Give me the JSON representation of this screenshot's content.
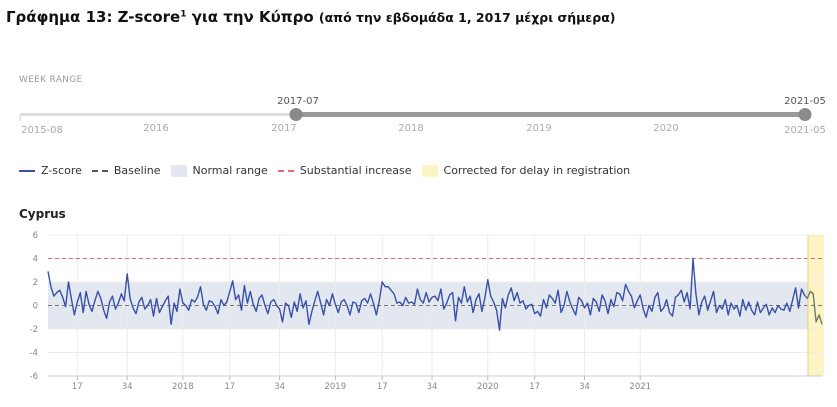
{
  "heading": {
    "main": "Γράφημα 13: Z-score",
    "sup": "1",
    "middle": " για την Κύπρο ",
    "sub": "(από την εβδομάδα 1, 2017 μέχρι σήμερα)"
  },
  "range_selector": {
    "label": "WEEK RANGE",
    "start_value": "2017-07",
    "end_value": "2021-05",
    "axis_start": "2015-08",
    "axis_end": "2021-05",
    "years": [
      "2016",
      "2017",
      "2018",
      "2019",
      "2020"
    ]
  },
  "legend": {
    "items": [
      {
        "label": "Z-score",
        "swatch": "line",
        "color": "#3850a8"
      },
      {
        "label": "Baseline",
        "swatch": "dash",
        "color": "#555555"
      },
      {
        "label": "Normal range",
        "swatch": "band",
        "color": "#e3e7ef"
      },
      {
        "label": "Substantial increase",
        "swatch": "reddash",
        "color": "#e07070"
      },
      {
        "label": "Corrected for delay in registration",
        "swatch": "yellow",
        "color": "#fcf4c4"
      }
    ]
  },
  "chart_data": {
    "type": "line",
    "title": "Cyprus",
    "ylim": [
      -6,
      6
    ],
    "y_ticks": [
      6,
      4,
      2,
      0,
      -2,
      -4,
      -6
    ],
    "baseline": 0,
    "normal_range": [
      -2,
      2
    ],
    "substantial_increase": 4,
    "x_start": "2017-07",
    "x_ticks": [
      {
        "label": "17",
        "week": 17,
        "year": 2017
      },
      {
        "label": "34",
        "week": 34,
        "year": 2017
      },
      {
        "label": "2018",
        "week": 1,
        "year": 2018
      },
      {
        "label": "17",
        "week": 17,
        "year": 2018
      },
      {
        "label": "34",
        "week": 34,
        "year": 2018
      },
      {
        "label": "2019",
        "week": 1,
        "year": 2019
      },
      {
        "label": "17",
        "week": 17,
        "year": 2019
      },
      {
        "label": "34",
        "week": 34,
        "year": 2019
      },
      {
        "label": "2020",
        "week": 1,
        "year": 2020
      },
      {
        "label": "17",
        "week": 17,
        "year": 2020
      },
      {
        "label": "34",
        "week": 34,
        "year": 2020
      },
      {
        "label": "2021",
        "week": 1,
        "year": 2021
      }
    ],
    "corrected_from_week_index": 204,
    "series": [
      {
        "name": "Z-score",
        "color": "#3850a8",
        "values": [
          2.9,
          1.6,
          0.8,
          1.1,
          1.3,
          0.7,
          -0.1,
          2.0,
          0.5,
          -0.8,
          0.3,
          1.1,
          -0.6,
          1.2,
          0.1,
          -0.5,
          0.4,
          1.2,
          0.6,
          -0.4,
          -1.1,
          0.3,
          0.8,
          -0.3,
          0.2,
          1.0,
          0.4,
          2.7,
          0.6,
          -0.2,
          -0.7,
          0.3,
          0.7,
          -0.3,
          0.0,
          0.5,
          -0.9,
          0.6,
          -0.6,
          -0.1,
          0.4,
          0.8,
          -1.6,
          0.2,
          -0.5,
          1.4,
          0.2,
          0.0,
          -0.4,
          0.5,
          0.3,
          0.7,
          1.6,
          0.1,
          -0.4,
          0.4,
          0.3,
          -0.1,
          -0.7,
          0.5,
          0.0,
          0.3,
          1.2,
          2.1,
          0.5,
          0.9,
          -0.4,
          1.7,
          0.2,
          1.2,
          0.1,
          -0.5,
          0.6,
          0.9,
          0.0,
          -0.7,
          0.3,
          0.5,
          0.0,
          -0.3,
          -1.4,
          0.2,
          0.0,
          -1.0,
          0.3,
          -0.5,
          1.0,
          -0.2,
          0.4,
          -1.6,
          -0.5,
          0.4,
          1.2,
          0.2,
          -0.8,
          0.5,
          0.0,
          1.0,
          0.1,
          -0.6,
          0.3,
          0.5,
          0.0,
          -0.8,
          0.3,
          0.2,
          -0.6,
          0.4,
          0.6,
          0.2,
          1.0,
          0.2,
          -0.8,
          0.4,
          2.0,
          1.6,
          1.6,
          1.3,
          1.0,
          0.2,
          0.3,
          0.0,
          0.7,
          0.2,
          0.3,
          0.1,
          1.4,
          0.5,
          0.2,
          1.1,
          0.3,
          0.7,
          0.8,
          0.4,
          1.4,
          -0.3,
          0.2,
          0.9,
          1.1,
          -1.3,
          0.7,
          0.2,
          1.6,
          0.3,
          0.8,
          -0.6,
          0.5,
          1.0,
          -0.5,
          0.6,
          2.2,
          0.8,
          0.3,
          -0.4,
          -2.1,
          0.6,
          -0.2,
          0.9,
          1.5,
          0.4,
          1.1,
          0.2,
          0.4,
          -0.3,
          0.0,
          0.1,
          -0.7,
          -0.5,
          -0.9,
          0.5,
          -0.2,
          0.9,
          0.6,
          0.2,
          1.3,
          -0.6,
          0.0,
          1.2,
          0.3,
          -0.3,
          -0.8,
          0.7,
          0.4,
          -0.2,
          0.2,
          -0.8,
          0.6,
          0.3,
          -0.5,
          0.9,
          0.4,
          -0.7,
          0.5,
          -0.1,
          1.1,
          1.0,
          0.4,
          1.8,
          1.2,
          0.8,
          -0.2,
          0.4,
          0.9,
          -0.3,
          -1.0,
          0.0,
          -0.5,
          0.7,
          1.1,
          -0.5,
          -0.2,
          0.5,
          -0.6,
          -0.9,
          0.7,
          0.9,
          1.3,
          0.3,
          1.1,
          -0.3,
          4.0,
          1.0,
          -0.8,
          0.3,
          0.8,
          -0.4,
          0.4,
          1.2,
          -0.6,
          0.0,
          -0.3,
          0.5,
          -0.8,
          0.2,
          -0.3,
          0.0,
          -0.9,
          0.5,
          -0.4,
          0.3,
          -0.4,
          -0.8,
          0.3,
          -0.6,
          -0.2,
          0.1,
          -0.8,
          -0.2,
          -0.6,
          0.0,
          -0.3,
          -0.4,
          0.2,
          -0.5,
          0.5,
          1.5,
          -0.2,
          1.4,
          0.9,
          0.6,
          1.2,
          1.0,
          -1.4,
          -0.8,
          -1.6
        ]
      }
    ]
  }
}
